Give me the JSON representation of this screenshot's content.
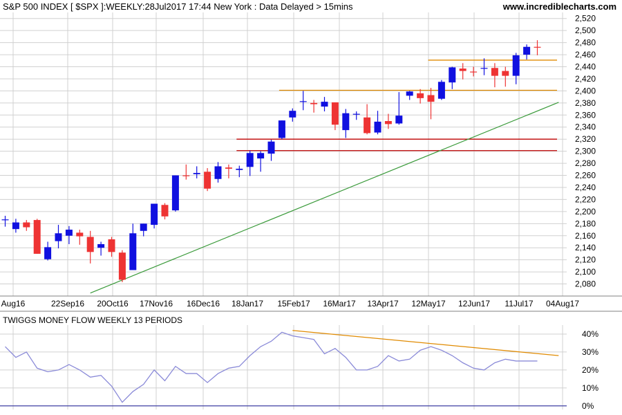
{
  "header": {
    "title": "S&P 500 INDEX [ $SPX ]:WEEKLY:28Jul2017 17:44 New York : Data Delayed > 15mins",
    "site": "www.incrediblecharts.com"
  },
  "colors": {
    "up_candle": "#1010e0",
    "down_candle": "#ee3333",
    "support_line": "#e08a00",
    "pivot_line": "#c00000",
    "trend_line": "#3a9a3a",
    "indicator_line": "#8a8ad8",
    "indicator_trend": "#e08a00",
    "zero_line": "#3030a0",
    "grid": "#d0d0d0"
  },
  "chart_data": [
    {
      "type": "candlestick",
      "title": "S&P 500 INDEX [ $SPX ]:WEEKLY:28Jul2017 17:44 New York : Data Delayed > 15mins",
      "ylim": [
        2060,
        2530
      ],
      "grid": true,
      "y_ticks": [
        "2,080",
        "2,100",
        "2,120",
        "2,140",
        "2,160",
        "2,180",
        "2,200",
        "2,220",
        "2,240",
        "2,260",
        "2,280",
        "2,300",
        "2,320",
        "2,340",
        "2,360",
        "2,380",
        "2,400",
        "2,420",
        "2,440",
        "2,460",
        "2,480",
        "2,500",
        "2,520"
      ],
      "x_labels": [
        "Aug16",
        "22Sep16",
        "20Oct16",
        "17Nov16",
        "16Dec16",
        "18Jan17",
        "15Feb17",
        "16Mar17",
        "13Apr17",
        "12May17",
        "12Jun17",
        "11Jul17",
        "04Aug17"
      ],
      "candles": [
        {
          "o": 2187,
          "h": 2193,
          "l": 2175,
          "c": 2187
        },
        {
          "o": 2171,
          "h": 2188,
          "l": 2165,
          "c": 2182
        },
        {
          "o": 2182,
          "h": 2186,
          "l": 2168,
          "c": 2174
        },
        {
          "o": 2186,
          "h": 2188,
          "l": 2130,
          "c": 2130
        },
        {
          "o": 2121,
          "h": 2150,
          "l": 2119,
          "c": 2141
        },
        {
          "o": 2151,
          "h": 2178,
          "l": 2139,
          "c": 2164
        },
        {
          "o": 2160,
          "h": 2176,
          "l": 2146,
          "c": 2170
        },
        {
          "o": 2165,
          "h": 2170,
          "l": 2145,
          "c": 2159
        },
        {
          "o": 2158,
          "h": 2168,
          "l": 2114,
          "c": 2133
        },
        {
          "o": 2140,
          "h": 2150,
          "l": 2127,
          "c": 2146
        },
        {
          "o": 2154,
          "h": 2158,
          "l": 2125,
          "c": 2133
        },
        {
          "o": 2132,
          "h": 2136,
          "l": 2083,
          "c": 2087
        },
        {
          "o": 2103,
          "h": 2180,
          "l": 2103,
          "c": 2164
        },
        {
          "o": 2168,
          "h": 2180,
          "l": 2159,
          "c": 2180
        },
        {
          "o": 2178,
          "h": 2213,
          "l": 2172,
          "c": 2213
        },
        {
          "o": 2211,
          "h": 2214,
          "l": 2187,
          "c": 2192
        },
        {
          "o": 2202,
          "h": 2260,
          "l": 2200,
          "c": 2260
        },
        {
          "o": 2260,
          "h": 2278,
          "l": 2253,
          "c": 2259
        },
        {
          "o": 2262,
          "h": 2275,
          "l": 2255,
          "c": 2264
        },
        {
          "o": 2266,
          "h": 2272,
          "l": 2234,
          "c": 2238
        },
        {
          "o": 2254,
          "h": 2282,
          "l": 2248,
          "c": 2275
        },
        {
          "o": 2273,
          "h": 2278,
          "l": 2255,
          "c": 2271
        },
        {
          "o": 2269,
          "h": 2276,
          "l": 2257,
          "c": 2271
        },
        {
          "o": 2274,
          "h": 2301,
          "l": 2259,
          "c": 2297
        },
        {
          "o": 2288,
          "h": 2300,
          "l": 2266,
          "c": 2297
        },
        {
          "o": 2296,
          "h": 2319,
          "l": 2284,
          "c": 2316
        },
        {
          "o": 2322,
          "h": 2351,
          "l": 2320,
          "c": 2351
        },
        {
          "o": 2356,
          "h": 2371,
          "l": 2349,
          "c": 2367
        },
        {
          "o": 2382,
          "h": 2400,
          "l": 2368,
          "c": 2383
        },
        {
          "o": 2380,
          "h": 2385,
          "l": 2364,
          "c": 2378
        },
        {
          "o": 2374,
          "h": 2390,
          "l": 2366,
          "c": 2382
        },
        {
          "o": 2381,
          "h": 2381,
          "l": 2335,
          "c": 2344
        },
        {
          "o": 2335,
          "h": 2370,
          "l": 2322,
          "c": 2363
        },
        {
          "o": 2362,
          "h": 2366,
          "l": 2352,
          "c": 2362
        },
        {
          "o": 2356,
          "h": 2378,
          "l": 2328,
          "c": 2330
        },
        {
          "o": 2331,
          "h": 2367,
          "l": 2328,
          "c": 2349
        },
        {
          "o": 2350,
          "h": 2362,
          "l": 2337,
          "c": 2345
        },
        {
          "o": 2346,
          "h": 2398,
          "l": 2344,
          "c": 2359
        },
        {
          "o": 2392,
          "h": 2400,
          "l": 2385,
          "c": 2399
        },
        {
          "o": 2396,
          "h": 2403,
          "l": 2379,
          "c": 2388
        },
        {
          "o": 2393,
          "h": 2405,
          "l": 2353,
          "c": 2382
        },
        {
          "o": 2387,
          "h": 2418,
          "l": 2385,
          "c": 2415
        },
        {
          "o": 2414,
          "h": 2440,
          "l": 2403,
          "c": 2439
        },
        {
          "o": 2437,
          "h": 2446,
          "l": 2419,
          "c": 2433
        },
        {
          "o": 2432,
          "h": 2440,
          "l": 2424,
          "c": 2431
        },
        {
          "o": 2437,
          "h": 2454,
          "l": 2426,
          "c": 2438
        },
        {
          "o": 2438,
          "h": 2446,
          "l": 2406,
          "c": 2425
        },
        {
          "o": 2433,
          "h": 2440,
          "l": 2407,
          "c": 2425
        },
        {
          "o": 2425,
          "h": 2463,
          "l": 2411,
          "c": 2459
        },
        {
          "o": 2460,
          "h": 2477,
          "l": 2452,
          "c": 2473
        },
        {
          "o": 2473,
          "h": 2484,
          "l": 2459,
          "c": 2472
        }
      ],
      "horizontal_lines": [
        {
          "value": 2451,
          "color_key": "support_line",
          "from_candle": 40
        },
        {
          "value": 2401,
          "color_key": "support_line",
          "from_candle": 26
        },
        {
          "value": 2320,
          "color_key": "pivot_line",
          "from_candle": 22
        },
        {
          "value": 2301,
          "color_key": "pivot_line",
          "from_candle": 22
        }
      ],
      "trend_line": {
        "from": [
          8,
          2065
        ],
        "to": [
          52,
          2381
        ]
      }
    },
    {
      "type": "line",
      "title": "TWIGGS MONEY FLOW WEEKLY 13 PERIODS",
      "ylim": [
        -2,
        45
      ],
      "y_ticks": [
        "0%",
        "10%",
        "20%",
        "30%",
        "40%"
      ],
      "series": [
        {
          "values": [
            33,
            27,
            30,
            21,
            19,
            20,
            23,
            20,
            16,
            17,
            11,
            2,
            8,
            12,
            20,
            14,
            22,
            18,
            18,
            13,
            18,
            21,
            22,
            28,
            33,
            36,
            41,
            39,
            38,
            37,
            29,
            32,
            27,
            20,
            20,
            22,
            28,
            25,
            26,
            31,
            33,
            31,
            28,
            24,
            21,
            20,
            24,
            26,
            25,
            25,
            25
          ]
        }
      ],
      "indicator_trend": {
        "from": [
          27,
          42
        ],
        "to": [
          52,
          28
        ]
      },
      "zero_line": 0
    }
  ]
}
